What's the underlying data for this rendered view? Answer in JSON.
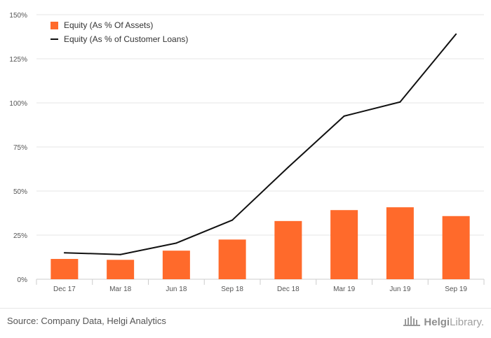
{
  "chart_data": {
    "type": "bar",
    "categories": [
      "Dec 17",
      "Mar 18",
      "Jun 18",
      "Sep 18",
      "Dec 18",
      "Mar 19",
      "Jun 19",
      "Sep 19"
    ],
    "series": [
      {
        "name": "Equity (As % Of Assets)",
        "type": "bar",
        "color": "#ff6a2b",
        "values": [
          11.5,
          11.0,
          16.2,
          22.5,
          33.0,
          39.2,
          40.8,
          35.8
        ]
      },
      {
        "name": "Equity (As % of Customer Loans)",
        "type": "line",
        "color": "#111111",
        "values": [
          15.0,
          14.0,
          20.5,
          33.5,
          63.5,
          92.5,
          100.5,
          139.0
        ]
      }
    ],
    "y_ticks": [
      "0%",
      "25%",
      "50%",
      "75%",
      "100%",
      "125%",
      "150%"
    ],
    "y_tick_values": [
      0,
      25,
      50,
      75,
      100,
      125,
      150
    ],
    "ylim": [
      0,
      150
    ],
    "grid": true,
    "legend_position": "top-left",
    "title": "",
    "xlabel": "",
    "ylabel": ""
  },
  "footer": {
    "source": "Source: Company Data, Helgi Analytics",
    "brand_prefix": "Helgi",
    "brand_suffix": "Library."
  }
}
